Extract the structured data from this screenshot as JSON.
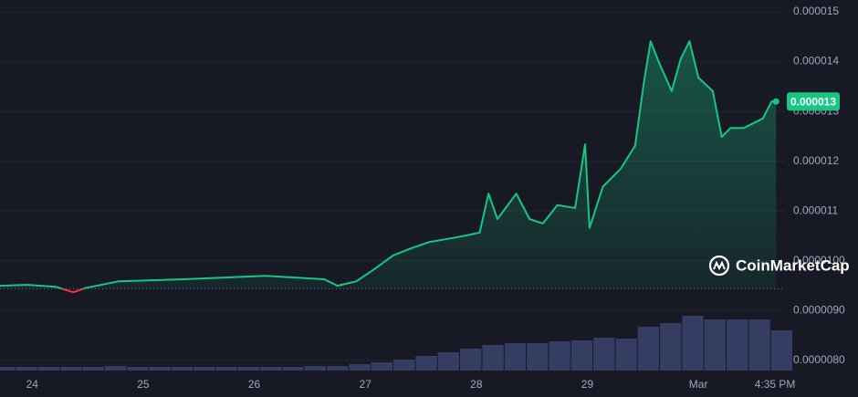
{
  "chart_data": {
    "type": "line",
    "color": "#16c784",
    "below_color": "#ea3943",
    "reference_line": 9.44e-06,
    "watermark": "CoinMarketCap",
    "last_price": 1.32e-05,
    "last_price_label": "0.000013",
    "grid": true,
    "xlim": [
      -0.29,
      6.78
    ],
    "xticks": [
      {
        "value": 0,
        "label": "24"
      },
      {
        "value": 1,
        "label": "25"
      },
      {
        "value": 2,
        "label": "26"
      },
      {
        "value": 3,
        "label": "27"
      },
      {
        "value": 4,
        "label": "28"
      },
      {
        "value": 5,
        "label": "29"
      },
      {
        "value": 6,
        "label": "Mar"
      },
      {
        "value": 6.69,
        "label": "4:35 PM"
      }
    ],
    "ylim": [
      8e-06,
      1.5e-05
    ],
    "yticks": [
      {
        "value": 8e-06,
        "label": "0.0000080"
      },
      {
        "value": 9e-06,
        "label": "0.0000090"
      },
      {
        "value": 1e-05,
        "label": "0.0000100"
      },
      1.1e-05,
      1.2e-05,
      1.3e-05,
      1.4e-05,
      1.5e-05
    ],
    "series": [
      {
        "x": [
          -0.29,
          -0.04,
          0.21,
          0.37,
          0.49,
          0.78,
          1.36,
          2.1,
          2.63,
          2.75,
          2.92,
          3.08,
          3.25,
          3.41,
          3.58,
          3.74,
          3.91,
          4.03,
          4.11,
          4.19,
          4.36,
          4.48,
          4.6,
          4.73,
          4.89,
          4.98,
          5.02,
          5.14,
          5.3,
          5.43,
          5.51,
          5.57,
          5.65,
          5.76,
          5.84,
          5.92,
          6.0,
          6.13,
          6.21,
          6.29,
          6.41,
          6.58,
          6.66,
          6.7
        ],
        "values": [
          9.5e-06,
          9.52e-06,
          9.48e-06,
          9.37e-06,
          9.46e-06,
          9.59e-06,
          9.63e-06,
          9.7e-06,
          9.63e-06,
          9.5e-06,
          9.59e-06,
          9.83e-06,
          1.011e-05,
          1.025e-05,
          1.038e-05,
          1.044e-05,
          1.051e-05,
          1.057e-05,
          1.135e-05,
          1.084e-05,
          1.135e-05,
          1.084e-05,
          1.075e-05,
          1.112e-05,
          1.106e-05,
          1.234e-05,
          1.066e-05,
          1.149e-05,
          1.185e-05,
          1.231e-05,
          1.359e-05,
          1.441e-05,
          1.396e-05,
          1.341e-05,
          1.405e-05,
          1.441e-05,
          1.368e-05,
          1.341e-05,
          1.249e-05,
          1.267e-05,
          1.267e-05,
          1.286e-05,
          1.32e-05,
          1.32e-05
        ]
      }
    ],
    "volume": {
      "color": "#353d63",
      "ylim": [
        0,
        100
      ],
      "x": [
        -0.25,
        -0.05,
        0.15,
        0.35,
        0.55,
        0.75,
        0.95,
        1.15,
        1.35,
        1.55,
        1.75,
        1.95,
        2.15,
        2.35,
        2.55,
        2.75,
        2.95,
        3.15,
        3.35,
        3.55,
        3.75,
        3.95,
        4.15,
        4.35,
        4.55,
        4.75,
        4.95,
        5.15,
        5.35,
        5.55,
        5.75,
        5.95,
        6.15,
        6.35,
        6.55,
        6.75
      ],
      "values": [
        4,
        4,
        4,
        4,
        4,
        5,
        4,
        4,
        4,
        4,
        4,
        4,
        4,
        4,
        5,
        5,
        7,
        9,
        12,
        16,
        20,
        24,
        28,
        30,
        30,
        32,
        33,
        36,
        35,
        48,
        52,
        60,
        56,
        56,
        56,
        44
      ]
    }
  }
}
